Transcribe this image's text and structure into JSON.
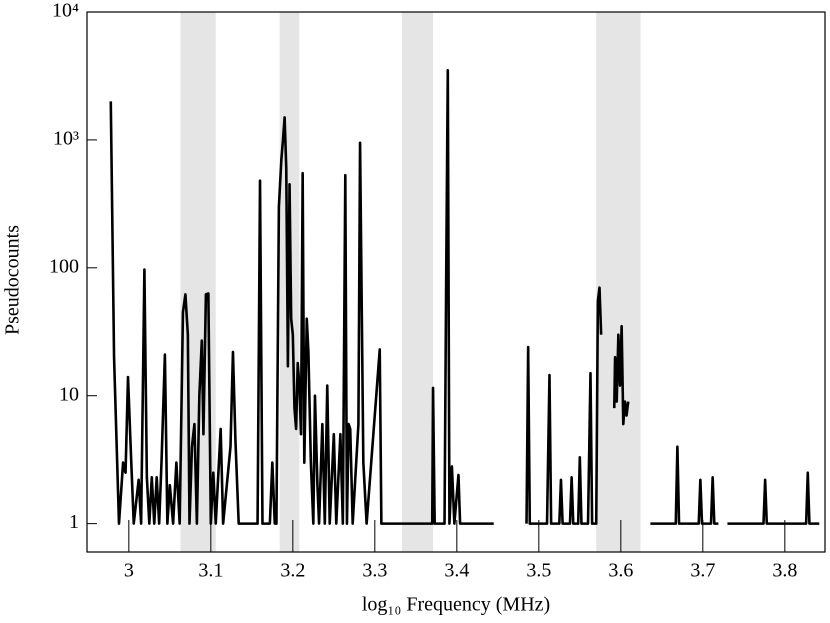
{
  "chart_data": {
    "type": "line",
    "log_y": true,
    "color": "#000000",
    "shade_color": "#e5e5e5",
    "xlabel": "log₁₀ Frequency (MHz)",
    "ylabel": "Pseudocounts",
    "xlim": [
      2.949,
      3.849
    ],
    "ylim": [
      0.6,
      10000
    ],
    "xticks": [
      3,
      3.1,
      3.2,
      3.3,
      3.4,
      3.5,
      3.6,
      3.7,
      3.8
    ],
    "yticks": [
      1,
      10,
      100,
      {
        "value": 1000,
        "label": "10³"
      },
      {
        "value": 10000,
        "label": "10⁴"
      }
    ],
    "shaded_regions": [
      [
        3.063,
        3.106
      ],
      [
        3.184,
        3.208
      ],
      [
        3.333,
        3.371
      ],
      [
        3.57,
        3.624
      ]
    ],
    "x": [
      2.978,
      2.982,
      2.988,
      2.993,
      2.996,
      2.999,
      3.003,
      3.006,
      3.012,
      3.015,
      3.019,
      3.022,
      3.025,
      3.028,
      3.031,
      3.034,
      3.037,
      3.04,
      3.044,
      3.047,
      3.05,
      3.054,
      3.058,
      3.062,
      3.066,
      3.069,
      3.072,
      3.074,
      3.077,
      3.08,
      3.083,
      3.086,
      3.089,
      3.091,
      3.094,
      3.097,
      3.1,
      3.103,
      3.106,
      3.112,
      3.115,
      3.124,
      3.127,
      3.13,
      3.134,
      3.157,
      3.16,
      3.163,
      3.172,
      3.175,
      3.178,
      3.18,
      3.183,
      3.186,
      3.188,
      3.19,
      3.192,
      3.194,
      3.196,
      3.198,
      3.2,
      3.202,
      3.204,
      3.206,
      3.208,
      3.21,
      3.212,
      3.214,
      3.217,
      3.219,
      3.222,
      3.225,
      3.227,
      3.23,
      3.232,
      3.236,
      3.239,
      3.242,
      3.245,
      3.25,
      3.253,
      3.258,
      3.261,
      3.264,
      3.266,
      3.268,
      3.27,
      3.273,
      3.28,
      3.282,
      3.286,
      3.29,
      3.306,
      3.308,
      3.37,
      3.371,
      3.373,
      3.385,
      3.387,
      3.389,
      3.391,
      3.394,
      3.397,
      3.402,
      3.404,
      3.445,
      null,
      3.485,
      3.487,
      3.489,
      3.51,
      3.513,
      3.515,
      3.525,
      3.527,
      3.529,
      3.538,
      3.54,
      3.542,
      3.548,
      3.55,
      3.552,
      3.56,
      3.563,
      3.565,
      3.57,
      3.572,
      3.574,
      3.576,
      null,
      3.592,
      3.593,
      3.595,
      3.597,
      3.599,
      3.601,
      3.603,
      3.605,
      3.607,
      3.609,
      null,
      3.636,
      3.667,
      3.669,
      3.671,
      3.695,
      3.697,
      3.699,
      3.71,
      3.712,
      3.714,
      3.719,
      null,
      3.73,
      3.774,
      3.776,
      3.778,
      3.826,
      3.828,
      3.83,
      3.842,
      null,
      3.847
    ],
    "values": [
      2000,
      20,
      1,
      3,
      2.5,
      14,
      3,
      1,
      2.2,
      1,
      97,
      2.3,
      1,
      2.3,
      1,
      2.3,
      1,
      3.2,
      21,
      1,
      2,
      1,
      3,
      1,
      45,
      62,
      30,
      1,
      4,
      6,
      1,
      10,
      27,
      5,
      62,
      63,
      1,
      2.5,
      1,
      5.5,
      1,
      4,
      22,
      4.5,
      1,
      1,
      480,
      1,
      1,
      3,
      1,
      1,
      300,
      700,
      1000,
      1500,
      600,
      17,
      450,
      40,
      30,
      8,
      5.5,
      18,
      12,
      5,
      550,
      3,
      40,
      22,
      3,
      1,
      10,
      2,
      1,
      6,
      1,
      12,
      1,
      5,
      1,
      5,
      1,
      530,
      1,
      6,
      5.5,
      1,
      6,
      950,
      3,
      1,
      23,
      1,
      1,
      11.5,
      1,
      1,
      80,
      3500,
      1,
      2.8,
      1,
      2.4,
      1,
      1,
      null,
      1,
      24,
      1,
      1,
      14.5,
      1,
      1,
      2.2,
      1,
      1,
      2.3,
      1,
      1,
      3.3,
      1,
      1,
      15,
      1,
      1,
      55,
      70,
      30,
      null,
      8,
      20,
      9,
      30,
      12,
      35,
      6,
      9,
      7,
      9,
      null,
      1,
      1,
      4,
      1,
      1,
      2.2,
      1,
      1,
      2.3,
      1,
      1,
      null,
      1,
      1,
      2.2,
      1,
      1,
      2.5,
      1,
      1,
      null,
      1
    ]
  }
}
